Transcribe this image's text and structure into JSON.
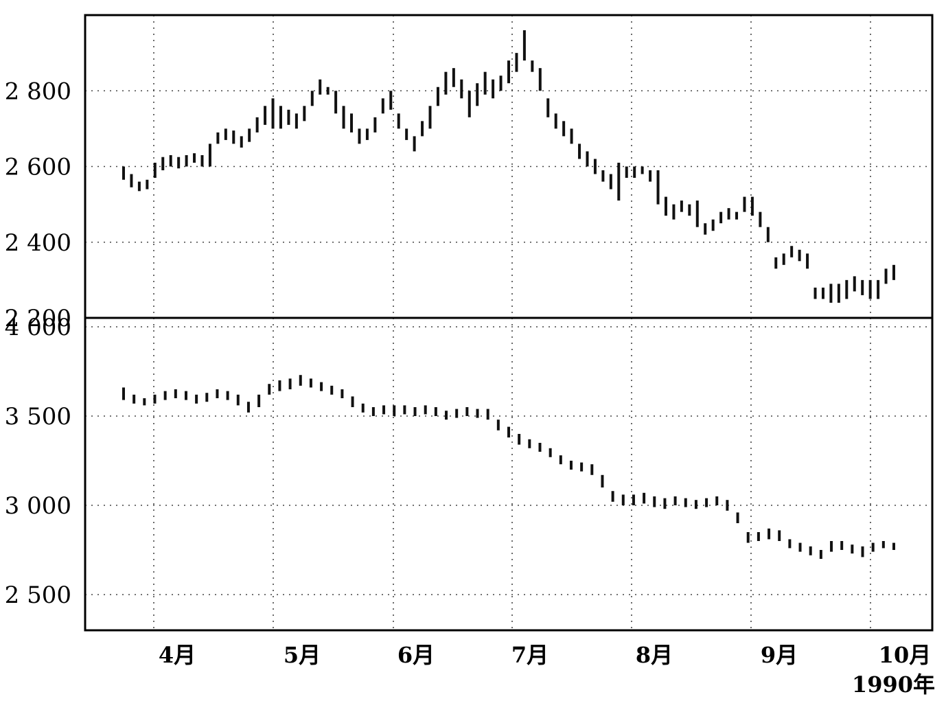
{
  "chart_data": [
    {
      "type": "bar",
      "subtype": "ohlc-range",
      "title": "",
      "xlabel": "",
      "ylabel": "",
      "ylim": [
        2200,
        3000
      ],
      "yticks": [
        2200,
        2400,
        2600,
        2800
      ],
      "ytick_labels": [
        "2 200",
        "2 400",
        "2 600",
        "2 800"
      ],
      "grid": true,
      "series": [
        {
          "values": [
            [
              2565,
              2600
            ],
            [
              2545,
              2580
            ],
            [
              2535,
              2560
            ],
            [
              2540,
              2565
            ],
            [
              2570,
              2610
            ],
            [
              2590,
              2625
            ],
            [
              2600,
              2630
            ],
            [
              2595,
              2625
            ],
            [
              2600,
              2630
            ],
            [
              2610,
              2635
            ],
            [
              2600,
              2630
            ],
            [
              2600,
              2660
            ],
            [
              2660,
              2690
            ],
            [
              2670,
              2700
            ],
            [
              2660,
              2695
            ],
            [
              2650,
              2680
            ],
            [
              2665,
              2700
            ],
            [
              2690,
              2730
            ],
            [
              2710,
              2760
            ],
            [
              2700,
              2780
            ],
            [
              2700,
              2760
            ],
            [
              2710,
              2750
            ],
            [
              2700,
              2740
            ],
            [
              2720,
              2760
            ],
            [
              2760,
              2800
            ],
            [
              2790,
              2830
            ],
            [
              2790,
              2810
            ],
            [
              2740,
              2800
            ],
            [
              2700,
              2760
            ],
            [
              2690,
              2740
            ],
            [
              2660,
              2700
            ],
            [
              2670,
              2700
            ],
            [
              2690,
              2730
            ],
            [
              2740,
              2780
            ],
            [
              2750,
              2800
            ],
            [
              2700,
              2740
            ],
            [
              2670,
              2700
            ],
            [
              2640,
              2680
            ],
            [
              2680,
              2720
            ],
            [
              2700,
              2760
            ],
            [
              2760,
              2810
            ],
            [
              2790,
              2850
            ],
            [
              2810,
              2860
            ],
            [
              2780,
              2830
            ],
            [
              2730,
              2800
            ],
            [
              2760,
              2820
            ],
            [
              2790,
              2850
            ],
            [
              2780,
              2830
            ],
            [
              2800,
              2840
            ],
            [
              2820,
              2880
            ],
            [
              2850,
              2900
            ],
            [
              2880,
              2960
            ],
            [
              2850,
              2880
            ],
            [
              2800,
              2860
            ],
            [
              2730,
              2780
            ],
            [
              2700,
              2740
            ],
            [
              2680,
              2720
            ],
            [
              2660,
              2700
            ],
            [
              2620,
              2660
            ],
            [
              2600,
              2640
            ],
            [
              2580,
              2620
            ],
            [
              2560,
              2590
            ],
            [
              2540,
              2580
            ],
            [
              2510,
              2610
            ],
            [
              2570,
              2600
            ],
            [
              2570,
              2600
            ],
            [
              2580,
              2600
            ],
            [
              2560,
              2590
            ],
            [
              2500,
              2590
            ],
            [
              2470,
              2520
            ],
            [
              2460,
              2500
            ],
            [
              2480,
              2510
            ],
            [
              2470,
              2500
            ],
            [
              2440,
              2510
            ],
            [
              2420,
              2450
            ],
            [
              2430,
              2460
            ],
            [
              2450,
              2480
            ],
            [
              2460,
              2490
            ],
            [
              2460,
              2480
            ],
            [
              2480,
              2520
            ],
            [
              2470,
              2520
            ],
            [
              2440,
              2480
            ],
            [
              2400,
              2440
            ],
            [
              2330,
              2360
            ],
            [
              2340,
              2370
            ],
            [
              2360,
              2390
            ],
            [
              2350,
              2380
            ],
            [
              2330,
              2370
            ],
            [
              2250,
              2280
            ],
            [
              2250,
              2280
            ],
            [
              2240,
              2290
            ],
            [
              2240,
              2290
            ],
            [
              2250,
              2300
            ],
            [
              2270,
              2310
            ],
            [
              2260,
              2300
            ],
            [
              2250,
              2300
            ],
            [
              2250,
              2300
            ],
            [
              2290,
              2330
            ],
            [
              2300,
              2340
            ]
          ]
        }
      ]
    },
    {
      "type": "bar",
      "subtype": "ohlc-range",
      "title": "",
      "xlabel": "",
      "ylabel": "",
      "ylim": [
        2300,
        4050
      ],
      "yticks": [
        2500,
        3000,
        3500,
        4000
      ],
      "ytick_labels": [
        "2 500",
        "3 000",
        "3 500",
        "4 000"
      ],
      "grid": true,
      "series": [
        {
          "values": [
            [
              3590,
              3660
            ],
            [
              3570,
              3620
            ],
            [
              3560,
              3600
            ],
            [
              3570,
              3620
            ],
            [
              3590,
              3640
            ],
            [
              3600,
              3650
            ],
            [
              3590,
              3640
            ],
            [
              3570,
              3620
            ],
            [
              3580,
              3630
            ],
            [
              3600,
              3650
            ],
            [
              3590,
              3640
            ],
            [
              3560,
              3620
            ],
            [
              3520,
              3580
            ],
            [
              3550,
              3620
            ],
            [
              3620,
              3680
            ],
            [
              3640,
              3700
            ],
            [
              3650,
              3710
            ],
            [
              3670,
              3730
            ],
            [
              3660,
              3710
            ],
            [
              3640,
              3690
            ],
            [
              3620,
              3670
            ],
            [
              3600,
              3650
            ],
            [
              3550,
              3610
            ],
            [
              3520,
              3570
            ],
            [
              3500,
              3550
            ],
            [
              3510,
              3560
            ],
            [
              3500,
              3560
            ],
            [
              3510,
              3560
            ],
            [
              3500,
              3550
            ],
            [
              3510,
              3560
            ],
            [
              3500,
              3550
            ],
            [
              3480,
              3530
            ],
            [
              3490,
              3540
            ],
            [
              3500,
              3550
            ],
            [
              3490,
              3540
            ],
            [
              3480,
              3540
            ],
            [
              3420,
              3480
            ],
            [
              3380,
              3440
            ],
            [
              3340,
              3400
            ],
            [
              3320,
              3370
            ],
            [
              3300,
              3350
            ],
            [
              3270,
              3320
            ],
            [
              3230,
              3280
            ],
            [
              3200,
              3250
            ],
            [
              3190,
              3240
            ],
            [
              3170,
              3230
            ],
            [
              3100,
              3170
            ],
            [
              3020,
              3080
            ],
            [
              3000,
              3060
            ],
            [
              3000,
              3060
            ],
            [
              3010,
              3070
            ],
            [
              2990,
              3050
            ],
            [
              2980,
              3040
            ],
            [
              3000,
              3050
            ],
            [
              2990,
              3040
            ],
            [
              2980,
              3030
            ],
            [
              2990,
              3040
            ],
            [
              3000,
              3050
            ],
            [
              2970,
              3030
            ],
            [
              2900,
              2960
            ],
            [
              2790,
              2850
            ],
            [
              2800,
              2850
            ],
            [
              2810,
              2870
            ],
            [
              2800,
              2860
            ],
            [
              2760,
              2810
            ],
            [
              2740,
              2790
            ],
            [
              2720,
              2770
            ],
            [
              2700,
              2750
            ],
            [
              2740,
              2800
            ],
            [
              2750,
              2800
            ],
            [
              2730,
              2780
            ],
            [
              2710,
              2770
            ],
            [
              2740,
              2790
            ],
            [
              2760,
              2800
            ],
            [
              2750,
              2790
            ]
          ]
        }
      ]
    }
  ],
  "x_axis": {
    "tick_labels": [
      "4月",
      "5月",
      "6月",
      "7月",
      "8月",
      "9月",
      "10月"
    ],
    "year_label": "1990年"
  }
}
